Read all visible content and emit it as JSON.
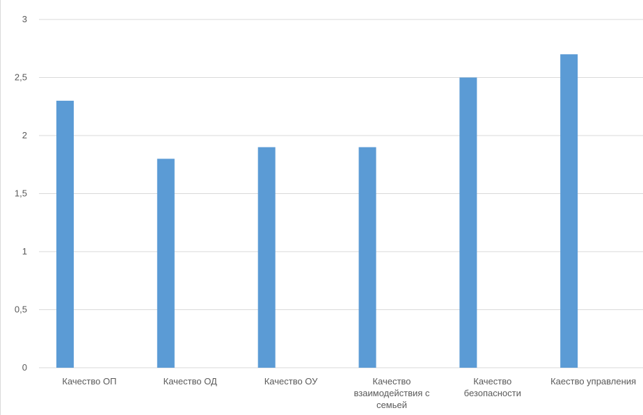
{
  "chart_data": {
    "type": "bar",
    "title": "",
    "xlabel": "",
    "ylabel": "",
    "categories": [
      [
        "Качество ОП"
      ],
      [
        "Качество ОД"
      ],
      [
        "Качество ОУ"
      ],
      [
        "Качество",
        "взаимодействия с",
        "семьей"
      ],
      [
        "Качество",
        "безопасности"
      ],
      [
        "Каество управления"
      ]
    ],
    "values": [
      2.3,
      1.8,
      1.9,
      1.9,
      2.5,
      2.7
    ],
    "ylim": [
      0,
      3
    ],
    "yticks": [
      0,
      0.5,
      1,
      1.5,
      2,
      2.5,
      3
    ],
    "ytick_labels": [
      "0",
      "0,5",
      "1",
      "1,5",
      "2",
      "2,5",
      "3"
    ],
    "grid": true,
    "legend": "none",
    "colors": {
      "bar": "#5b9bd5",
      "grid": "#d9d9d9",
      "text": "#595959"
    }
  }
}
